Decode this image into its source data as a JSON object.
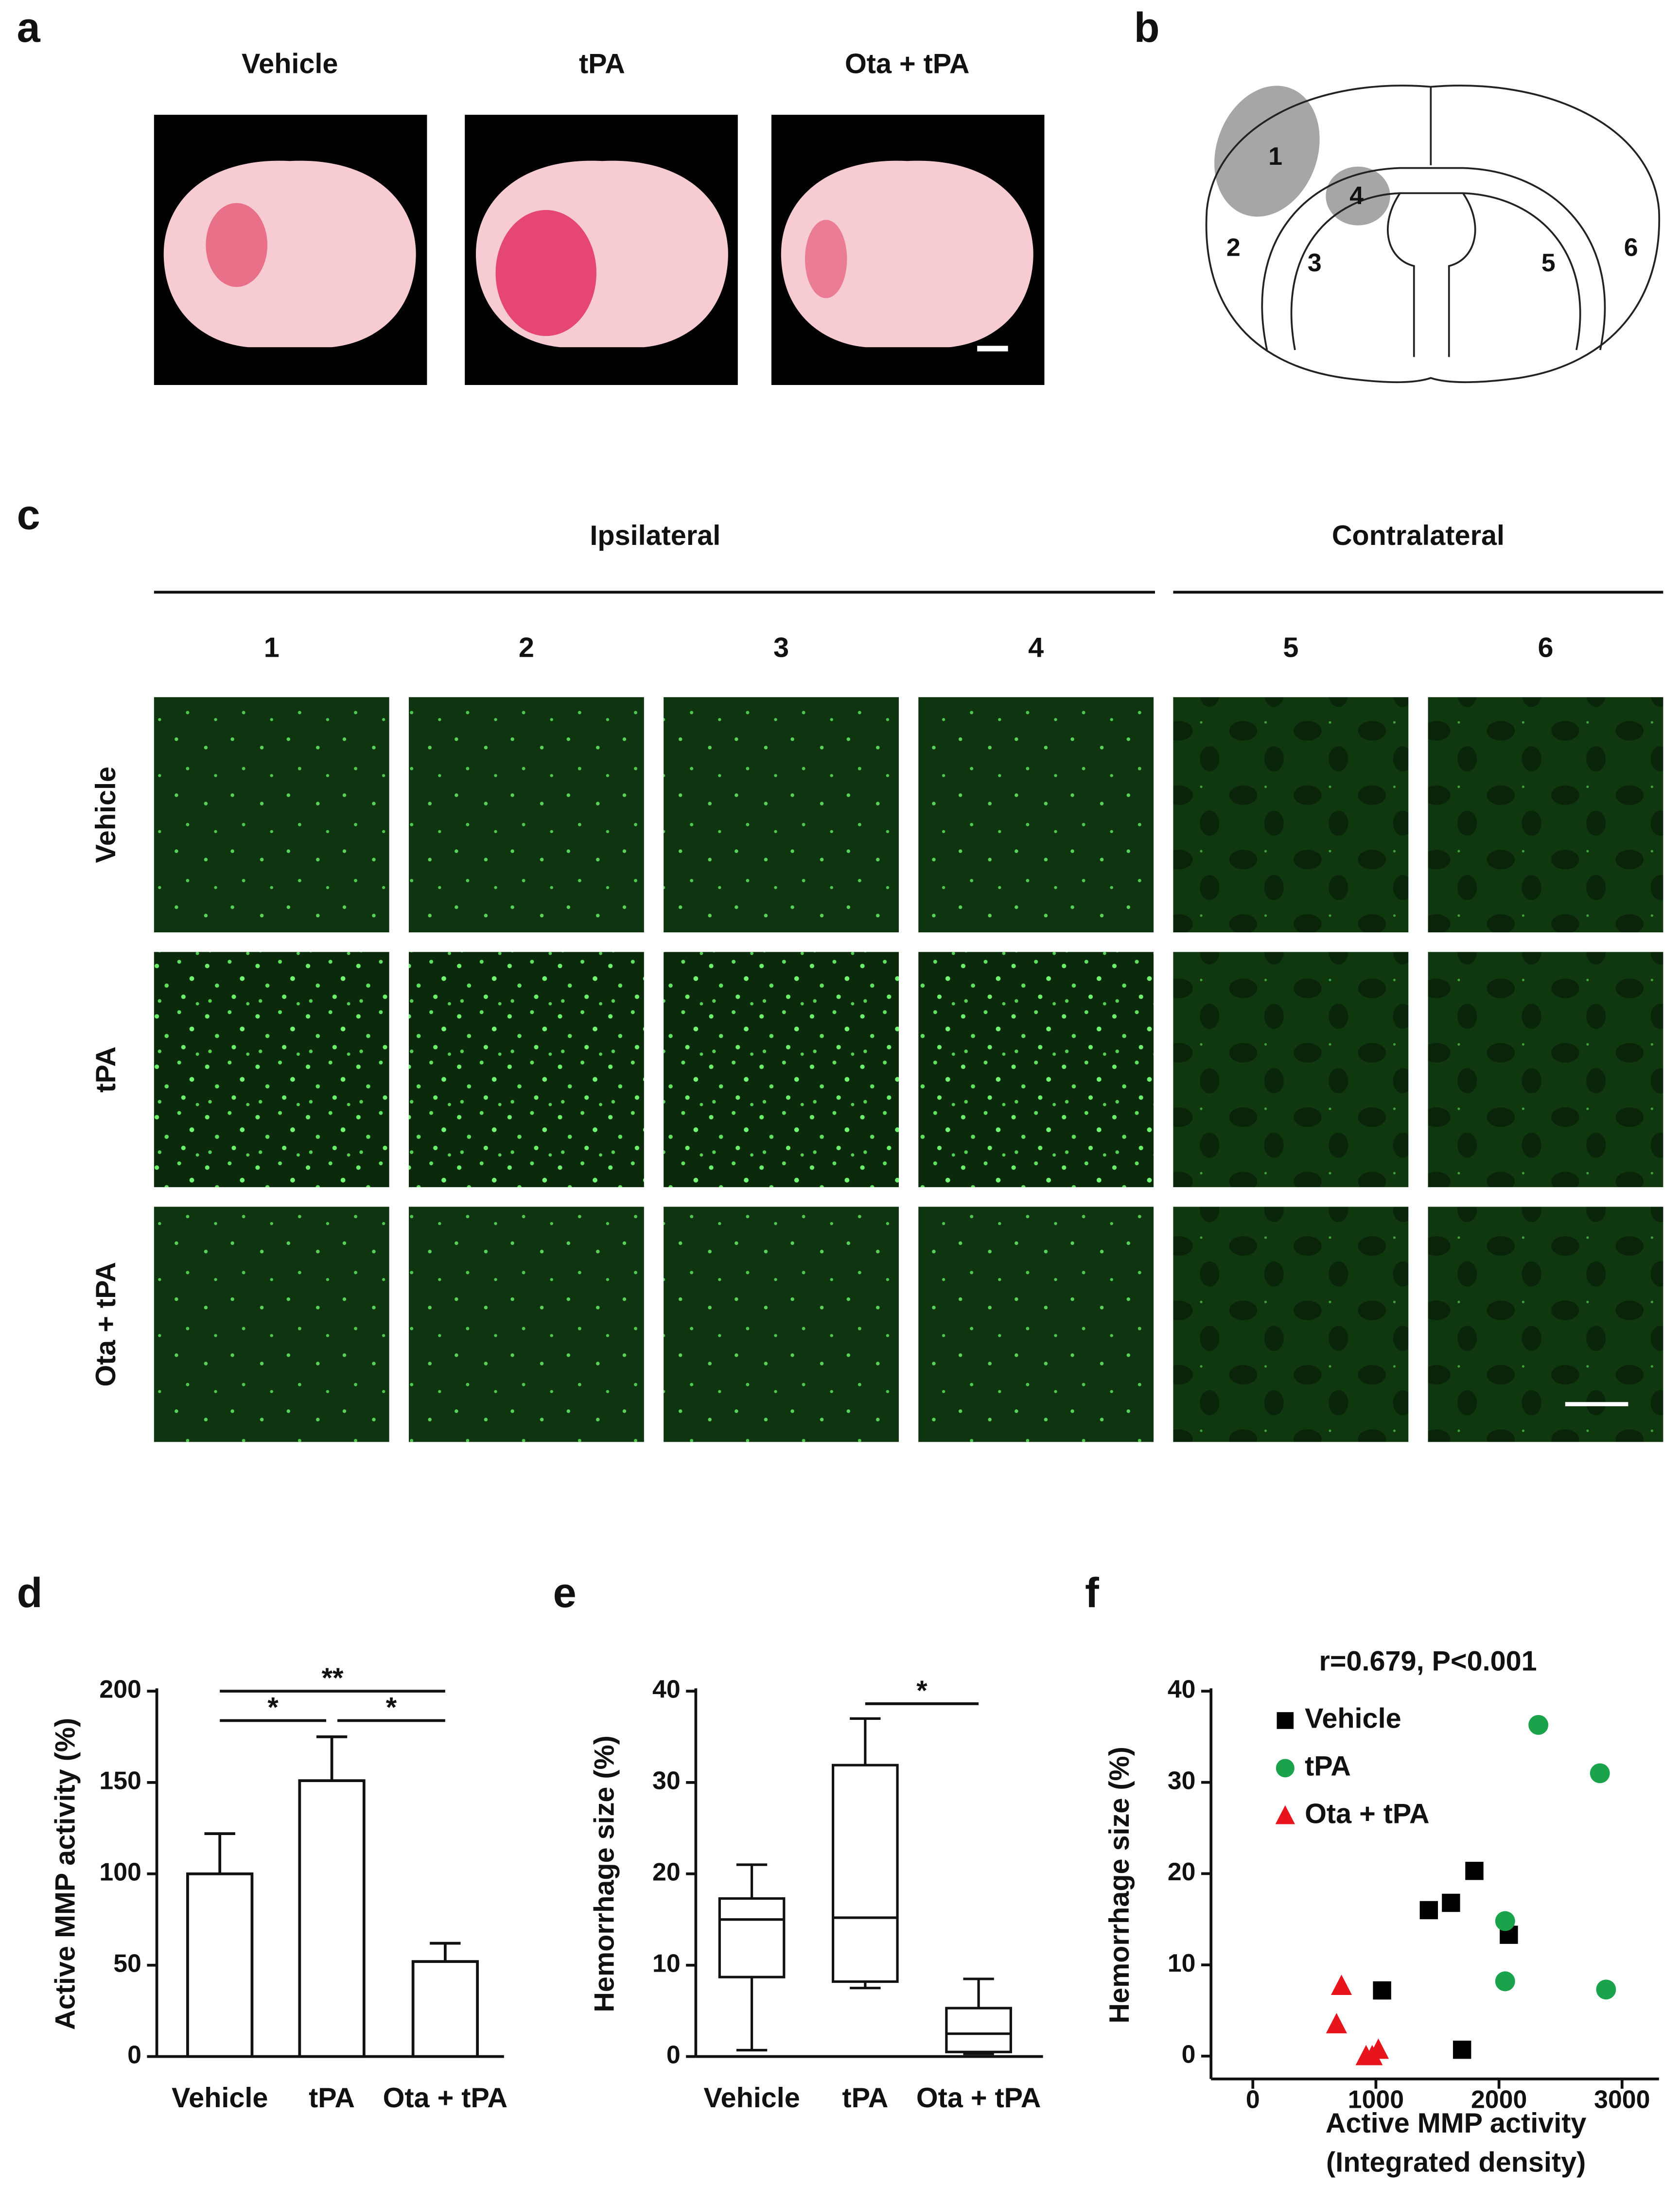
{
  "panel_labels": [
    "a",
    "b",
    "c",
    "d",
    "e",
    "f"
  ],
  "brain_slices": {
    "labels": [
      "Vehicle",
      "tPA",
      "Ota + tPA"
    ]
  },
  "diagram": {
    "regions": [
      "1",
      "2",
      "3",
      "4",
      "5",
      "6"
    ]
  },
  "micrographs": {
    "groups": [
      "Ipsilateral",
      "Contralateral"
    ],
    "columns": [
      "1",
      "2",
      "3",
      "4",
      "5",
      "6"
    ],
    "rows": [
      "Vehicle",
      "tPA",
      "Ota + tPA"
    ]
  },
  "chart_data": [
    {
      "type": "bar",
      "y_label": "Active MMP activity (%)",
      "categories": [
        "Vehicle",
        "tPA",
        "Ota + tPA"
      ],
      "values": [
        100,
        151,
        52
      ],
      "errors": [
        22,
        24,
        10
      ],
      "color": "#ffffff",
      "ylim": [
        0,
        200
      ],
      "yticks": [
        0,
        50,
        100,
        150,
        200
      ],
      "significance": [
        {
          "label": "**",
          "from": 0,
          "to": 2
        },
        {
          "label": "*",
          "from": 0,
          "to": 1
        },
        {
          "label": "*",
          "from": 1,
          "to": 2
        }
      ]
    },
    {
      "type": "box",
      "y_label": "Hemorrhage size (%)",
      "categories": [
        "Vehicle",
        "tPA",
        "Ota + tPA"
      ],
      "min": [
        0.7,
        7.5,
        0.3
      ],
      "q1": [
        8.7,
        8.2,
        0.5
      ],
      "median": [
        15,
        15.2,
        2.5
      ],
      "q3": [
        17.3,
        31.9,
        5.3
      ],
      "max": [
        21,
        37,
        8.5
      ],
      "ylim": [
        0,
        40
      ],
      "yticks": [
        0,
        10,
        20,
        30,
        40
      ],
      "significance": [
        {
          "label": "*",
          "from": 1,
          "to": 2
        }
      ]
    },
    {
      "type": "scatter",
      "title": "r=0.679, P<0.001",
      "x_label": "Active MMP activity",
      "x_label_2": "(Integrated density)",
      "y_label": "Hemorrhage size (%)",
      "series": [
        {
          "name": "Vehicle",
          "color": "#000000",
          "marker": "square",
          "x": [
            1050,
            1430,
            1610,
            1800,
            2080,
            1700
          ],
          "values": [
            7.2,
            16,
            16.8,
            20.3,
            13.3,
            0.7
          ]
        },
        {
          "name": "tPA",
          "color": "#1aa34a",
          "marker": "circle",
          "x": [
            2320,
            2820,
            2050,
            2050,
            2870
          ],
          "values": [
            36.3,
            31,
            14.8,
            8.2,
            7.3
          ]
        },
        {
          "name": "Ota + tPA",
          "color": "#e8141c",
          "marker": "triangle",
          "x": [
            720,
            680,
            920,
            970,
            1020
          ],
          "values": [
            7.7,
            3.5,
            0,
            0,
            0.7
          ]
        }
      ],
      "xlim": [
        -340,
        3300
      ],
      "xticks": [
        0,
        1000,
        2000,
        3000
      ],
      "ylim": [
        -2.5,
        40
      ],
      "yticks": [
        0,
        10,
        20,
        30,
        40
      ],
      "legend": "upper left"
    }
  ]
}
